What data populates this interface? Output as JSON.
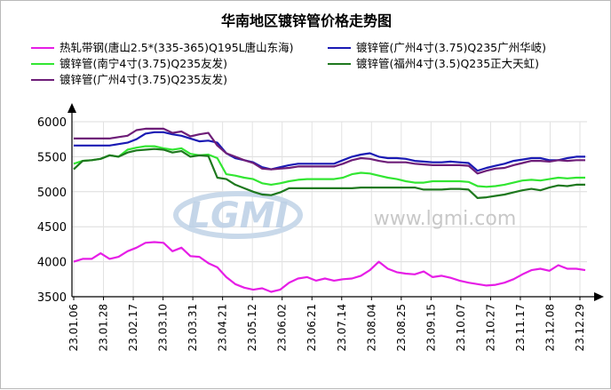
{
  "chart_data": {
    "type": "line",
    "title": "华南地区镀锌管价格走势图",
    "watermark": {
      "logo": "LGMI",
      "url": "www.lgmi.com"
    },
    "ylim": [
      3500,
      6000
    ],
    "yticks": [
      "3500",
      "4000",
      "4500",
      "5000",
      "5500",
      "6000"
    ],
    "xticks": [
      "23.01.06",
      "23.01.28",
      "23.02.17",
      "23.03.10",
      "23.03.31",
      "23.04.21",
      "23.05.12",
      "23.06.02",
      "23.06.21",
      "23.07.14",
      "23.08.04",
      "23.08.25",
      "23.09.15",
      "23.10.07",
      "23.10.27",
      "23.11.17",
      "23.12.08",
      "23.12.29"
    ],
    "grid": true,
    "legend_position": "top",
    "series": [
      {
        "name": "热轧带钢(唐山2.5*(335-365)Q195L唐山东海)",
        "color": "#e61ee6",
        "values": [
          4000,
          4040,
          4040,
          4120,
          4040,
          4070,
          4150,
          4200,
          4270,
          4280,
          4270,
          4150,
          4200,
          4080,
          4070,
          3980,
          3920,
          3780,
          3680,
          3630,
          3600,
          3620,
          3570,
          3600,
          3700,
          3760,
          3780,
          3730,
          3760,
          3730,
          3750,
          3760,
          3800,
          3880,
          4000,
          3900,
          3850,
          3830,
          3820,
          3860,
          3780,
          3800,
          3770,
          3730,
          3700,
          3680,
          3660,
          3670,
          3700,
          3750,
          3820,
          3880,
          3900,
          3870,
          3950,
          3900,
          3900,
          3880
        ]
      },
      {
        "name": "镀锌管(广州4寸(3.75)Q235广州华岐)",
        "color": "#1a1ab4",
        "values": [
          5660,
          5660,
          5660,
          5660,
          5660,
          5680,
          5700,
          5750,
          5830,
          5850,
          5850,
          5820,
          5800,
          5760,
          5720,
          5730,
          5700,
          5550,
          5480,
          5450,
          5420,
          5350,
          5320,
          5350,
          5380,
          5400,
          5400,
          5400,
          5400,
          5400,
          5450,
          5500,
          5530,
          5550,
          5500,
          5480,
          5480,
          5470,
          5440,
          5430,
          5420,
          5420,
          5430,
          5420,
          5410,
          5300,
          5340,
          5370,
          5400,
          5440,
          5460,
          5480,
          5480,
          5450,
          5450,
          5480,
          5500,
          5500
        ]
      },
      {
        "name": "镀锌管(南宁4寸(3.75)Q235友发)",
        "color": "#32e632",
        "values": [
          5400,
          5440,
          5450,
          5470,
          5520,
          5500,
          5600,
          5630,
          5650,
          5650,
          5620,
          5600,
          5620,
          5540,
          5520,
          5530,
          5480,
          5250,
          5230,
          5200,
          5180,
          5120,
          5100,
          5120,
          5150,
          5170,
          5180,
          5180,
          5180,
          5180,
          5200,
          5250,
          5270,
          5260,
          5230,
          5200,
          5180,
          5150,
          5130,
          5130,
          5150,
          5150,
          5150,
          5150,
          5140,
          5080,
          5070,
          5080,
          5100,
          5130,
          5160,
          5170,
          5160,
          5180,
          5200,
          5190,
          5200,
          5200
        ]
      },
      {
        "name": "镀锌管(福州4寸(3.5)Q235正大天虹)",
        "color": "#1e781e",
        "values": [
          5320,
          5440,
          5450,
          5470,
          5520,
          5500,
          5560,
          5590,
          5600,
          5610,
          5600,
          5560,
          5580,
          5500,
          5520,
          5510,
          5200,
          5180,
          5100,
          5050,
          5000,
          4960,
          4950,
          4990,
          5050,
          5050,
          5050,
          5050,
          5050,
          5050,
          5050,
          5050,
          5060,
          5060,
          5060,
          5060,
          5060,
          5060,
          5060,
          5030,
          5030,
          5030,
          5040,
          5040,
          5030,
          4910,
          4920,
          4940,
          4960,
          4990,
          5020,
          5040,
          5020,
          5060,
          5090,
          5080,
          5100,
          5100
        ]
      },
      {
        "name": "镀锌管(广州4寸(3.75)Q235友发)",
        "color": "#6e1e78",
        "values": [
          5760,
          5760,
          5760,
          5760,
          5760,
          5780,
          5800,
          5880,
          5900,
          5900,
          5900,
          5840,
          5860,
          5790,
          5820,
          5840,
          5660,
          5550,
          5500,
          5450,
          5410,
          5330,
          5320,
          5330,
          5340,
          5360,
          5360,
          5360,
          5360,
          5360,
          5400,
          5450,
          5480,
          5470,
          5440,
          5420,
          5420,
          5420,
          5400,
          5390,
          5380,
          5380,
          5380,
          5380,
          5370,
          5260,
          5300,
          5330,
          5340,
          5380,
          5410,
          5440,
          5440,
          5430,
          5450,
          5440,
          5450,
          5450
        ]
      }
    ]
  }
}
